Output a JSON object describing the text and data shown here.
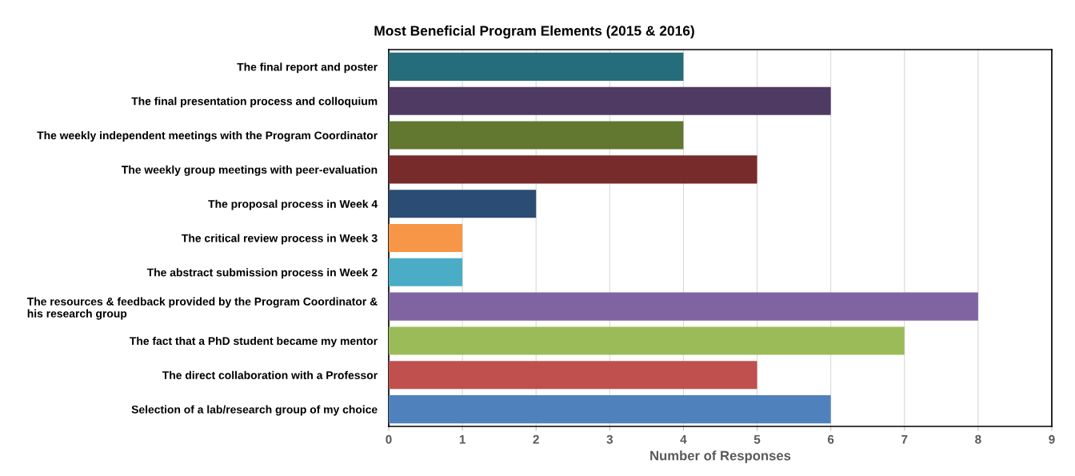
{
  "chart_data": {
    "type": "bar",
    "orientation": "horizontal",
    "title": "Most Beneficial Program Elements (2015 & 2016)",
    "xlabel": "Number of Responses",
    "categories": [
      "The final report and poster",
      "The final presentation process and colloquium",
      "The weekly independent meetings with the Program Coordinator",
      "The weekly group meetings with peer-evaluation",
      "The proposal process in Week 4",
      "The critical review process in Week 3",
      "The abstract submission process in Week 2",
      "The resources & feedback provided by the Program Coordinator & his research group",
      "The fact that a PhD student became my mentor",
      "The direct collaboration with a Professor",
      "Selection of a lab/research group of my choice"
    ],
    "values": [
      4,
      6,
      4,
      5,
      2,
      1,
      1,
      8,
      7,
      5,
      6
    ],
    "colors": [
      "#256d7b",
      "#4f3a63",
      "#62772f",
      "#772b2b",
      "#2b4c73",
      "#f79646",
      "#4bacc6",
      "#8064a2",
      "#9bbb59",
      "#c0504d",
      "#4f81bd"
    ],
    "xlim": [
      0,
      9
    ],
    "xticks": [
      0,
      1,
      2,
      3,
      4,
      5,
      6,
      7,
      8,
      9
    ],
    "grid": "x"
  }
}
